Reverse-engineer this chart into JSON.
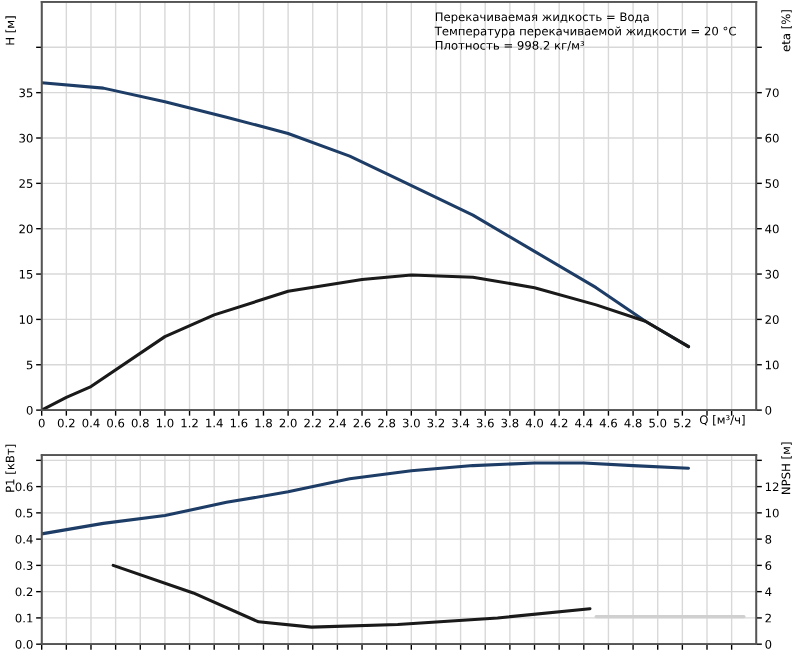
{
  "chart_data": [
    {
      "type": "line",
      "xlabel": "Q [м³/ч]",
      "ylabel": "H [м]",
      "y2label": "eta [%]",
      "xlim": [
        0,
        5.8
      ],
      "xticks": [
        0,
        0.2,
        0.4,
        0.6,
        0.8,
        {
          "value": 1,
          "label": "1.0"
        },
        1.2,
        1.4,
        1.6,
        1.8,
        {
          "value": 2,
          "label": "2.0"
        },
        2.2,
        2.4,
        2.6,
        2.8,
        {
          "value": 3,
          "label": "3.0"
        },
        3.2,
        3.4,
        3.6,
        3.8,
        {
          "value": 4,
          "label": "4.0"
        },
        4.2,
        4.4,
        4.6,
        4.8,
        {
          "value": 5,
          "label": "5.0"
        },
        5.2,
        {
          "value": 5.4,
          "label": null
        },
        {
          "value": 5.6,
          "label": null
        }
      ],
      "ylim": [
        0,
        45
      ],
      "yticks": [
        0,
        5,
        10,
        15,
        20,
        25,
        30,
        35,
        {
          "value": 40,
          "label": null
        }
      ],
      "y2lim": [
        0,
        90
      ],
      "y2ticks": [
        0,
        10,
        20,
        30,
        40,
        50,
        60,
        70,
        {
          "value": 80,
          "label": null
        }
      ],
      "grid": true,
      "legend": false,
      "annotations": [
        "Перекачиваемая жидкость = Вода",
        "Температура перекачиваемой жидкости = 20 °C",
        "Плотность = 998.2 кг/м³"
      ],
      "series": [
        {
          "color": "#1e3d66",
          "x": [
            0,
            0.5,
            1.0,
            1.5,
            2.0,
            2.5,
            2.9,
            3.5,
            4.0,
            4.5,
            4.9,
            5.25
          ],
          "values": [
            36.1,
            35.5,
            34.0,
            32.3,
            30.5,
            28.0,
            25.4,
            21.5,
            17.5,
            13.5,
            9.8,
            7.0
          ]
        },
        {
          "color": "#1a1a1a",
          "axis": "y2",
          "x": [
            0,
            0.2,
            0.4,
            1.0,
            1.4,
            2.0,
            2.6,
            3.0,
            3.5,
            4.0,
            4.5,
            4.9,
            5.25
          ],
          "values": [
            0,
            2.8,
            5.2,
            16.2,
            21,
            26.2,
            28.8,
            29.8,
            29.3,
            27,
            23.2,
            19.6,
            14
          ]
        }
      ]
    },
    {
      "type": "line",
      "ylabel": "P1 [кВт]",
      "y2label": "NPSH [м]",
      "xlim": [
        0,
        5.8
      ],
      "tick_labels": "y",
      "xticks": [
        0,
        0.2,
        0.4,
        0.6,
        0.8,
        1.0,
        1.2,
        1.4,
        1.6,
        1.8,
        2.0,
        2.2,
        2.4,
        2.6,
        2.8,
        3.0,
        3.2,
        3.4,
        3.6,
        3.8,
        4.0,
        4.2,
        4.4,
        4.6,
        4.8,
        5.0,
        5.2,
        5.4,
        5.6
      ],
      "ylim": [
        0,
        0.72
      ],
      "yticks": [
        {
          "value": 0,
          "label": "0.0"
        },
        0.1,
        0.2,
        0.3,
        0.4,
        0.5,
        0.6,
        {
          "value": 0.7,
          "label": null
        }
      ],
      "y2lim": [
        0,
        14.4
      ],
      "y2ticks": [
        0,
        2,
        4,
        6,
        8,
        10,
        12,
        {
          "value": 14,
          "label": null
        }
      ],
      "grid": true,
      "legend": false,
      "series": [
        {
          "color": "#1e3d66",
          "x": [
            0,
            0.5,
            1.0,
            1.5,
            2.0,
            2.5,
            3.0,
            3.5,
            4.0,
            4.4,
            4.8,
            5.25
          ],
          "values": [
            0.42,
            0.46,
            0.49,
            0.54,
            0.58,
            0.63,
            0.66,
            0.68,
            0.69,
            0.69,
            0.68,
            0.67
          ]
        },
        {
          "color": "#1a1a1a",
          "axis": "y2",
          "x": [
            0.58,
            1.23,
            1.76,
            2.19,
            2.89,
            3.7,
            4.45
          ],
          "values": [
            6.0,
            3.9,
            1.7,
            1.3,
            1.5,
            2.0,
            2.7
          ]
        },
        {
          "color": "#d0d0d0",
          "axis": "y2",
          "x": [
            4.5,
            5.7
          ],
          "values": [
            2.1,
            2.1
          ]
        }
      ]
    }
  ]
}
